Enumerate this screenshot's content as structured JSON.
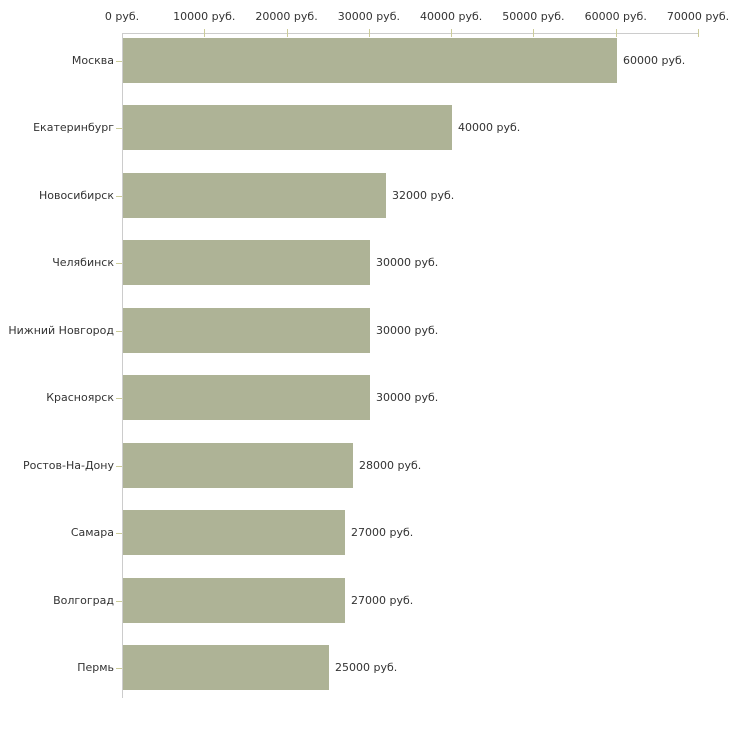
{
  "chart_data": {
    "type": "bar",
    "orientation": "horizontal",
    "categories": [
      "Москва",
      "Екатеринбург",
      "Новосибирск",
      "Челябинск",
      "Нижний Новгород",
      "Красноярск",
      "Ростов-На-Дону",
      "Самара",
      "Волгоград",
      "Пермь"
    ],
    "values": [
      60000,
      40000,
      32000,
      30000,
      30000,
      30000,
      28000,
      27000,
      27000,
      25000
    ],
    "value_labels": [
      "60000 руб.",
      "40000 руб.",
      "32000 руб.",
      "30000 руб.",
      "30000 руб.",
      "30000 руб.",
      "28000 руб.",
      "27000 руб.",
      "27000 руб.",
      "25000 руб."
    ],
    "x_axis": {
      "position": "top",
      "min": 0,
      "max": 70000,
      "tick_step": 10000,
      "unit": "руб.",
      "tick_labels": [
        "0 руб.",
        "10000 руб.",
        "20000 руб.",
        "30000 руб.",
        "40000 руб.",
        "50000 руб.",
        "60000 руб.",
        "70000 руб."
      ]
    },
    "colors": {
      "bar_fill": "#aeb396",
      "axis_line": "#cccccc",
      "tick_mark": "#cccc99",
      "text": "#333333",
      "background": "#ffffff"
    },
    "grid": false,
    "title": ""
  }
}
